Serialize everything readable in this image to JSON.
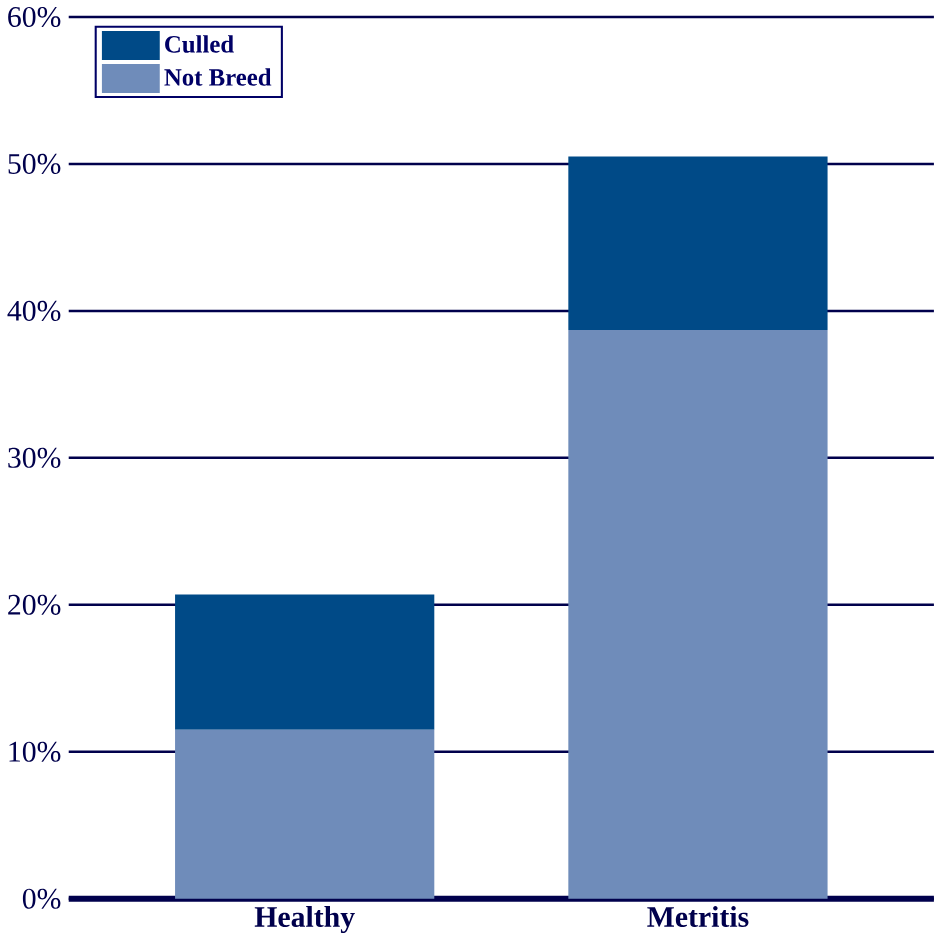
{
  "chart_data": {
    "type": "bar",
    "stacked": true,
    "categories": [
      "Healthy",
      "Metritis"
    ],
    "series": [
      {
        "name": "Not Breed",
        "color": "#6f8cba",
        "values": [
          11.5,
          38.7
        ]
      },
      {
        "name": "Culled",
        "color": "#004a87",
        "values": [
          9.2,
          11.8
        ]
      }
    ],
    "ylim": [
      0,
      60
    ],
    "yticks": [
      {
        "value": 0,
        "label": "0%"
      },
      {
        "value": 10,
        "label": "10%"
      },
      {
        "value": 20,
        "label": "20%"
      },
      {
        "value": 30,
        "label": "30%"
      },
      {
        "value": 40,
        "label": "40%"
      },
      {
        "value": 50,
        "label": "50%"
      },
      {
        "value": 60,
        "label": "60%"
      }
    ],
    "grid": "y",
    "legend": "top left"
  }
}
